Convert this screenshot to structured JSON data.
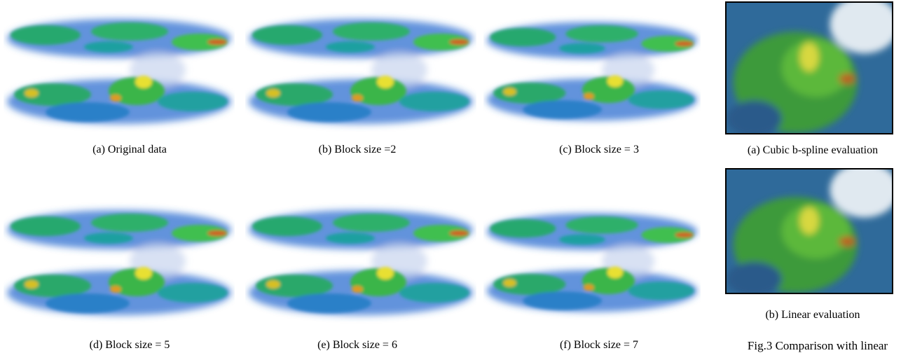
{
  "panels": [
    {
      "caption": "(a) Original data"
    },
    {
      "caption": "(b) Block size =2"
    },
    {
      "caption": "(c) Block size = 3"
    },
    {
      "caption": "(d) Block size = 5"
    },
    {
      "caption": "(e) Block size = 6"
    },
    {
      "caption": "(f) Block size = 7"
    }
  ],
  "side": {
    "panels": [
      {
        "caption": "(a) Cubic b-spline evaluation"
      },
      {
        "caption": "(b) Linear evaluation"
      }
    ],
    "figure_caption": "Fig.3 Comparison with linear"
  }
}
